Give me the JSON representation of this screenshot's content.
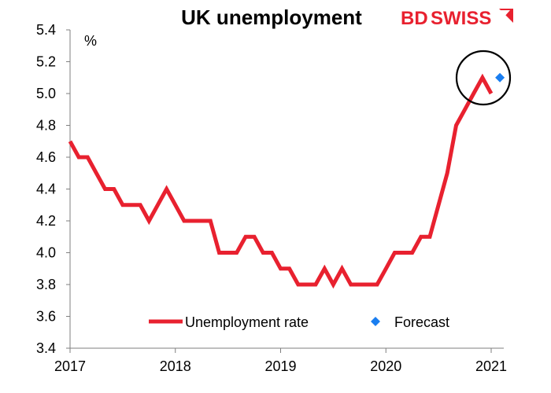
{
  "chart_data": {
    "type": "line",
    "title": "UK unemployment",
    "ylabel": "%",
    "xlabel": "",
    "ylim": [
      3.4,
      5.4
    ],
    "ytick_step": 0.2,
    "xlim": [
      2017.0,
      2021.2
    ],
    "xticks": [
      "2017",
      "2018",
      "2019",
      "2020",
      "2021"
    ],
    "grid": false,
    "legend_position": "bottom-center",
    "series": [
      {
        "name": "Unemployment rate",
        "color": "#e8212f",
        "x": [
          2017.0,
          2017.083,
          2017.167,
          2017.25,
          2017.333,
          2017.417,
          2017.5,
          2017.583,
          2017.667,
          2017.75,
          2017.833,
          2017.917,
          2018.0,
          2018.083,
          2018.167,
          2018.25,
          2018.333,
          2018.417,
          2018.5,
          2018.583,
          2018.667,
          2018.75,
          2018.833,
          2018.917,
          2019.0,
          2019.083,
          2019.167,
          2019.25,
          2019.333,
          2019.417,
          2019.5,
          2019.583,
          2019.667,
          2019.75,
          2019.833,
          2019.917,
          2020.0,
          2020.083,
          2020.167,
          2020.25,
          2020.333,
          2020.417,
          2020.5,
          2020.583,
          2020.667,
          2020.75,
          2020.833,
          2020.917,
          2021.0
        ],
        "values": [
          4.7,
          4.6,
          4.6,
          4.5,
          4.4,
          4.4,
          4.3,
          4.3,
          4.3,
          4.2,
          4.3,
          4.4,
          4.3,
          4.2,
          4.2,
          4.2,
          4.2,
          4.0,
          4.0,
          4.0,
          4.1,
          4.1,
          4.0,
          4.0,
          3.9,
          3.9,
          3.8,
          3.8,
          3.8,
          3.9,
          3.8,
          3.9,
          3.8,
          3.8,
          3.8,
          3.8,
          3.9,
          4.0,
          4.0,
          4.0,
          4.1,
          4.1,
          4.3,
          4.5,
          4.8,
          4.9,
          5.0,
          5.1,
          5.0
        ]
      },
      {
        "name": "Forecast",
        "color": "#1a7ef0",
        "marker": "diamond",
        "x": [
          2021.083
        ],
        "values": [
          5.1
        ]
      }
    ],
    "annotation": "circle-around-latest"
  },
  "logo": {
    "brand_bd": "BD",
    "brand_swiss": "SWISS",
    "color": "#e8212f"
  }
}
